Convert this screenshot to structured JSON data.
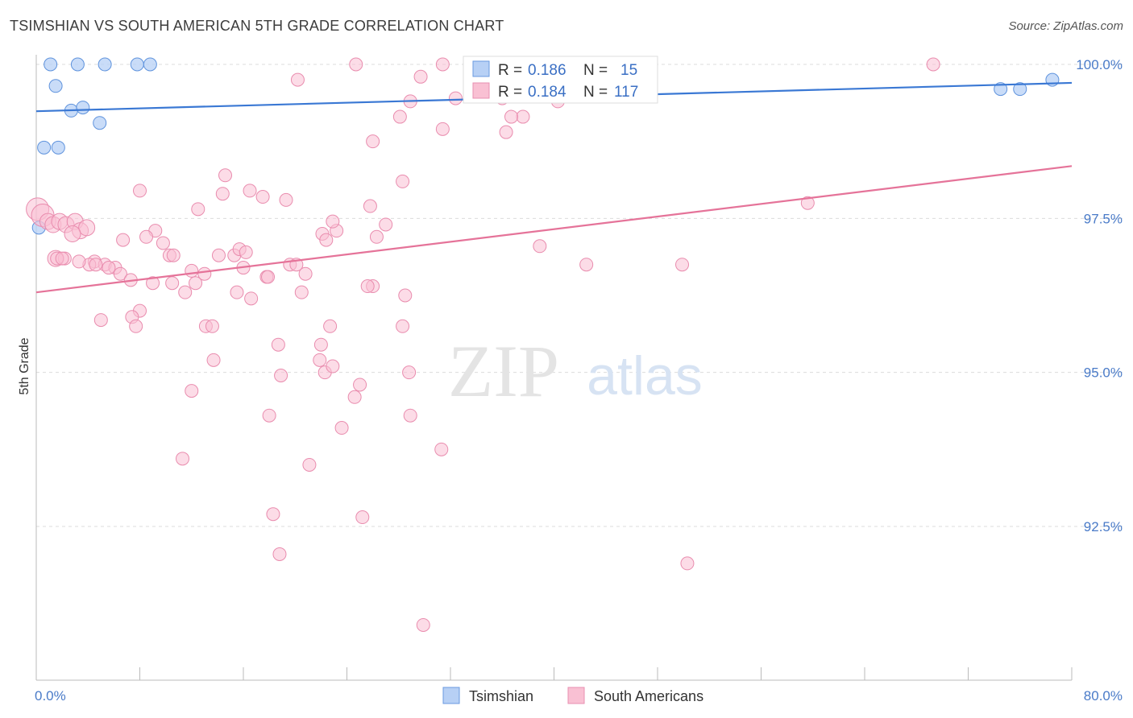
{
  "title": "TSIMSHIAN VS SOUTH AMERICAN 5TH GRADE CORRELATION CHART",
  "source": "Source: ZipAtlas.com",
  "watermark": {
    "zip": "ZIP",
    "atlas": "atlas"
  },
  "legend": {
    "r_label": "R =",
    "n_label": "N =",
    "items": [
      {
        "r": "0.186",
        "n": "15",
        "fill": "#b7d0f5",
        "stroke": "#6a9ae0"
      },
      {
        "r": "0.184",
        "n": "117",
        "fill": "#f9c0d3",
        "stroke": "#e88fb0"
      }
    ]
  },
  "bottom_legend": [
    "Tsimshian",
    "South Americans"
  ],
  "chart_data": {
    "type": "scatter",
    "title": "TSIMSHIAN VS SOUTH AMERICAN 5TH GRADE CORRELATION CHART",
    "xlabel": "",
    "ylabel": "5th Grade",
    "xlim": [
      0,
      80
    ],
    "ylim": [
      90.0,
      100.3
    ],
    "x_tick_labels": [
      "0.0%",
      "80.0%"
    ],
    "y_ticks": [
      92.5,
      95.0,
      97.5,
      100.0
    ],
    "y_tick_labels": [
      "92.5%",
      "95.0%",
      "97.5%",
      "100.0%"
    ],
    "grid": true,
    "colors": {
      "Tsimshian": "#3a78d4",
      "South Americans": "#e57399"
    },
    "series": [
      {
        "name": "Tsimshian",
        "trend": [
          [
            0,
            99.24
          ],
          [
            80,
            99.7
          ]
        ],
        "points": [
          [
            1.1,
            100.0
          ],
          [
            3.2,
            100.0
          ],
          [
            5.3,
            100.0
          ],
          [
            7.8,
            100.0
          ],
          [
            8.8,
            100.0
          ],
          [
            1.5,
            99.65
          ],
          [
            2.7,
            99.25
          ],
          [
            3.6,
            99.3
          ],
          [
            4.9,
            99.05
          ],
          [
            0.6,
            98.65
          ],
          [
            1.7,
            98.65
          ],
          [
            0.2,
            97.35
          ],
          [
            74.5,
            99.6
          ],
          [
            76.0,
            99.6
          ],
          [
            78.5,
            99.75
          ]
        ]
      },
      {
        "name": "South Americans",
        "trend": [
          [
            0,
            96.3
          ],
          [
            80,
            98.35
          ]
        ],
        "points": [
          [
            0.1,
            97.65
          ],
          [
            0.5,
            97.55
          ],
          [
            0.9,
            97.45
          ],
          [
            1.3,
            97.4
          ],
          [
            1.8,
            97.45
          ],
          [
            2.3,
            97.4
          ],
          [
            3.0,
            97.45
          ],
          [
            3.4,
            97.3
          ],
          [
            3.9,
            97.35
          ],
          [
            2.8,
            97.25
          ],
          [
            1.5,
            96.85
          ],
          [
            2.2,
            96.85
          ],
          [
            4.5,
            96.8
          ],
          [
            5.3,
            96.75
          ],
          [
            6.1,
            96.7
          ],
          [
            5.6,
            96.7
          ],
          [
            6.5,
            96.6
          ],
          [
            7.3,
            96.5
          ],
          [
            9.0,
            96.45
          ],
          [
            10.5,
            96.45
          ],
          [
            11.5,
            96.3
          ],
          [
            12.3,
            96.45
          ],
          [
            13.0,
            96.6
          ],
          [
            12.0,
            96.65
          ],
          [
            10.3,
            96.9
          ],
          [
            9.8,
            97.1
          ],
          [
            9.2,
            97.3
          ],
          [
            8.5,
            97.2
          ],
          [
            6.7,
            97.15
          ],
          [
            10.6,
            96.9
          ],
          [
            8.0,
            97.95
          ],
          [
            12.5,
            97.65
          ],
          [
            14.4,
            97.9
          ],
          [
            14.6,
            98.2
          ],
          [
            16.5,
            97.95
          ],
          [
            17.5,
            97.85
          ],
          [
            19.3,
            97.8
          ],
          [
            14.1,
            96.9
          ],
          [
            15.3,
            96.9
          ],
          [
            16.0,
            96.7
          ],
          [
            15.7,
            97.0
          ],
          [
            16.2,
            96.95
          ],
          [
            17.8,
            96.55
          ],
          [
            17.9,
            96.55
          ],
          [
            19.6,
            96.75
          ],
          [
            20.1,
            96.75
          ],
          [
            20.8,
            96.6
          ],
          [
            20.5,
            96.3
          ],
          [
            22.1,
            97.25
          ],
          [
            22.4,
            97.15
          ],
          [
            23.2,
            97.3
          ],
          [
            22.9,
            97.45
          ],
          [
            26.3,
            97.2
          ],
          [
            27.0,
            97.4
          ],
          [
            25.8,
            97.7
          ],
          [
            28.3,
            98.1
          ],
          [
            26.0,
            96.4
          ],
          [
            25.6,
            96.4
          ],
          [
            28.5,
            96.25
          ],
          [
            15.5,
            96.3
          ],
          [
            16.6,
            96.2
          ],
          [
            13.1,
            95.75
          ],
          [
            13.6,
            95.75
          ],
          [
            13.7,
            95.2
          ],
          [
            12.0,
            94.7
          ],
          [
            8.0,
            96.0
          ],
          [
            7.4,
            95.9
          ],
          [
            5.0,
            95.85
          ],
          [
            7.7,
            95.75
          ],
          [
            18.7,
            95.45
          ],
          [
            18.9,
            94.95
          ],
          [
            18.0,
            94.3
          ],
          [
            22.0,
            95.45
          ],
          [
            21.9,
            95.2
          ],
          [
            22.3,
            95.0
          ],
          [
            22.9,
            95.1
          ],
          [
            22.7,
            95.75
          ],
          [
            25.0,
            94.8
          ],
          [
            24.6,
            94.6
          ],
          [
            28.3,
            95.75
          ],
          [
            28.8,
            95.0
          ],
          [
            28.9,
            94.3
          ],
          [
            23.6,
            94.1
          ],
          [
            21.1,
            93.5
          ],
          [
            31.3,
            93.75
          ],
          [
            11.3,
            93.6
          ],
          [
            18.3,
            92.7
          ],
          [
            18.8,
            92.05
          ],
          [
            25.2,
            92.65
          ],
          [
            29.9,
            90.9
          ],
          [
            50.3,
            91.9
          ],
          [
            49.9,
            96.75
          ],
          [
            42.5,
            96.75
          ],
          [
            38.9,
            97.05
          ],
          [
            59.6,
            97.75
          ],
          [
            69.3,
            100.0
          ],
          [
            24.7,
            100.0
          ],
          [
            31.4,
            100.0
          ],
          [
            36.1,
            100.0
          ],
          [
            40.3,
            99.4
          ],
          [
            38.9,
            99.6
          ],
          [
            37.6,
            99.15
          ],
          [
            36.7,
            99.15
          ],
          [
            36.0,
            99.45
          ],
          [
            36.3,
            98.9
          ],
          [
            32.4,
            99.45
          ],
          [
            31.4,
            98.95
          ],
          [
            29.7,
            99.8
          ],
          [
            28.9,
            99.4
          ],
          [
            28.1,
            99.15
          ],
          [
            26.0,
            98.75
          ],
          [
            20.2,
            99.75
          ],
          [
            4.1,
            96.75
          ],
          [
            4.6,
            96.75
          ],
          [
            3.3,
            96.8
          ],
          [
            1.6,
            96.85
          ],
          [
            2.0,
            96.85
          ]
        ]
      }
    ]
  }
}
